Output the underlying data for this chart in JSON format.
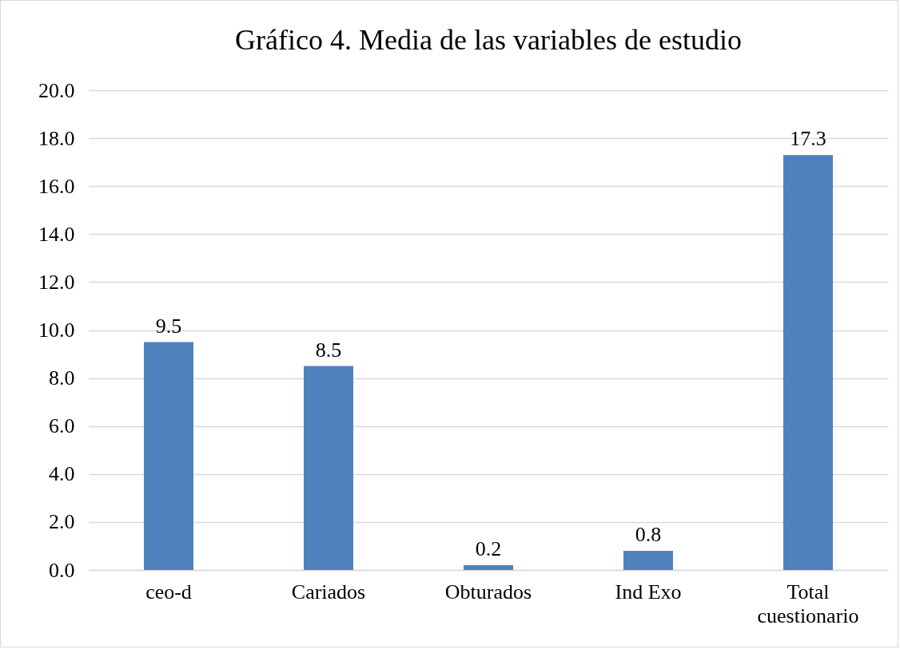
{
  "chart_data": {
    "type": "bar",
    "title": "Gráfico 4. Media de las variables de estudio",
    "categories": [
      "ceo-d",
      "Cariados",
      "Obturados",
      "Ind Exo",
      "Total cuestionario"
    ],
    "values": [
      9.5,
      8.5,
      0.2,
      0.8,
      17.3
    ],
    "color": "#4f81bd",
    "ylim": [
      0,
      20
    ],
    "yticks": [
      {
        "value": 0,
        "label": "0.0"
      },
      {
        "value": 2,
        "label": "2.0"
      },
      {
        "value": 4,
        "label": "4.0"
      },
      {
        "value": 6,
        "label": "6.0"
      },
      {
        "value": 8,
        "label": "8.0"
      },
      {
        "value": 10,
        "label": "10.0"
      },
      {
        "value": 12,
        "label": "12.0"
      },
      {
        "value": 14,
        "label": "14.0"
      },
      {
        "value": 16,
        "label": "16.0"
      },
      {
        "value": 18,
        "label": "18.0"
      },
      {
        "value": 20,
        "label": "20.0"
      }
    ],
    "grid": "y",
    "data_labels": true
  }
}
